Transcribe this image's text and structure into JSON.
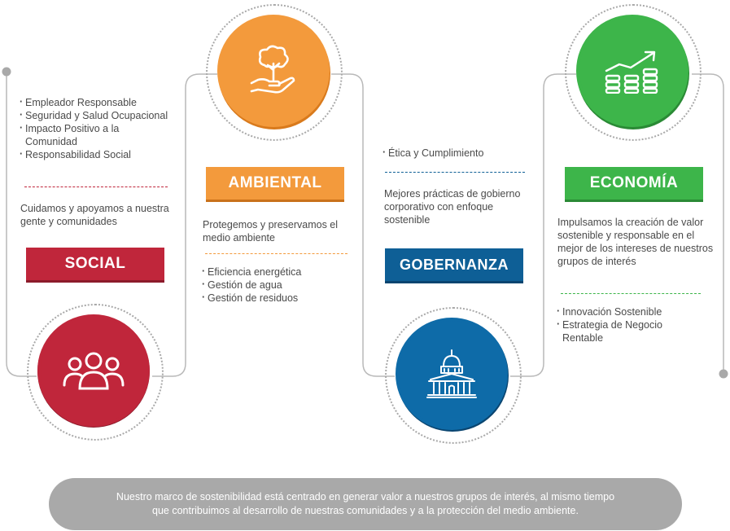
{
  "colors": {
    "social": "#c0263b",
    "ambiental": "#f39a3c",
    "gobernanza": "#0e5f96",
    "economia": "#3db54a",
    "connector": "#b9b9b9",
    "footer_bg": "#a9a9a9"
  },
  "social": {
    "label": "SOCIAL",
    "icon": "people-group-icon",
    "items": [
      "Empleador Responsable",
      "Seguridad y Salud Ocupacional",
      "Impacto Positivo a la Comunidad",
      "Responsabilidad Social"
    ],
    "description": "Cuidamos y apoyamos a nuestra gente y comunidades"
  },
  "ambiental": {
    "label": "AMBIENTAL",
    "icon": "tree-in-hand-icon",
    "description": "Protegemos y preservamos el medio ambiente",
    "items": [
      "Eficiencia energética",
      "Gestión de agua",
      "Gestión de residuos"
    ]
  },
  "gobernanza": {
    "label": "GOBERNANZA",
    "icon": "capitol-building-icon",
    "items": [
      "Ética y Cumplimiento"
    ],
    "description": "Mejores prácticas de gobierno corporativo con enfoque sostenible"
  },
  "economia": {
    "label": "ECONOMÍA",
    "icon": "coins-growth-icon",
    "description": "Impulsamos la creación de valor sostenible y responsable en el mejor de los intereses de nuestros  grupos de interés",
    "items": [
      "Innovación Sostenible",
      "Estrategia de Negocio Rentable"
    ]
  },
  "footer": {
    "line1": "Nuestro marco de sostenibilidad está centrado en generar valor a nuestros grupos de interés, al mismo tiempo",
    "line2": "que contribuimos al desarrollo de nuestras comunidades y a la protección del medio ambiente."
  }
}
